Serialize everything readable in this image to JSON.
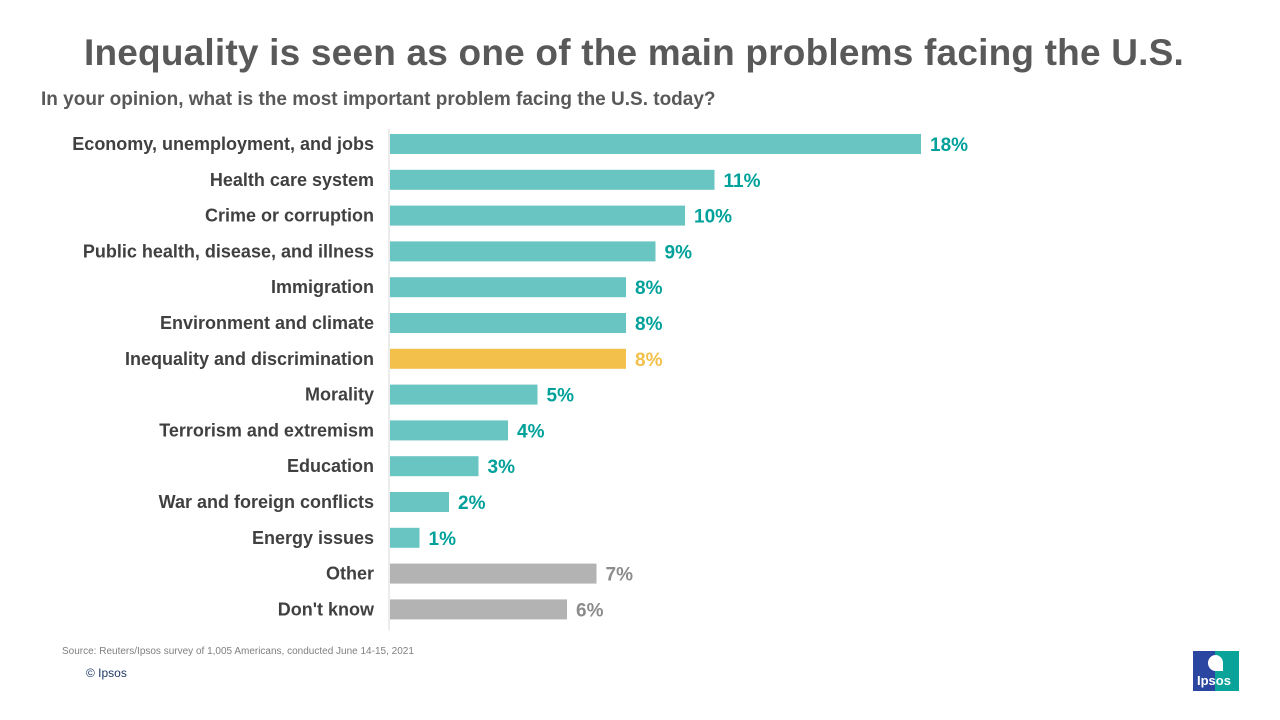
{
  "title": "Inequality is seen as one of the main problems facing the U.S.",
  "subtitle": "In your opinion, what is the most important problem facing the U.S. today?",
  "source": "Source: Reuters/Ipsos survey of 1,005 Americans, conducted June 14-15, 2021",
  "copyright": "© Ipsos",
  "logo_text": "Ipsos",
  "colors": {
    "default": "#69c5c2",
    "default_label": "#00a19a",
    "highlight": "#f2c04b",
    "highlight_label": "#f2c04b",
    "other": "#b3b3b3",
    "other_label": "#8c8c8c"
  },
  "chart_data": {
    "type": "bar",
    "orientation": "horizontal",
    "title": "Inequality is seen as one of the main problems facing the U.S.",
    "subtitle": "In your opinion, what is the most important problem facing the U.S. today?",
    "categories": [
      "Economy, unemployment, and jobs",
      "Health care system",
      "Crime or corruption",
      "Public health, disease, and illness",
      "Immigration",
      "Environment and climate",
      "Inequality and discrimination",
      "Morality",
      "Terrorism and extremism",
      "Education",
      "War and foreign conflicts",
      "Energy issues",
      "Other",
      "Don't know"
    ],
    "values": [
      18,
      11,
      10,
      9,
      8,
      8,
      8,
      5,
      4,
      3,
      2,
      1,
      7,
      6
    ],
    "labels": [
      "18%",
      "11%",
      "10%",
      "9%",
      "8%",
      "8%",
      "8%",
      "5%",
      "4%",
      "3%",
      "2%",
      "1%",
      "7%",
      "6%"
    ],
    "groups": [
      "default",
      "default",
      "default",
      "default",
      "default",
      "default",
      "highlight",
      "default",
      "default",
      "default",
      "default",
      "default",
      "other",
      "other"
    ],
    "xlim": [
      0,
      20
    ],
    "grid": false,
    "legend": "none"
  }
}
